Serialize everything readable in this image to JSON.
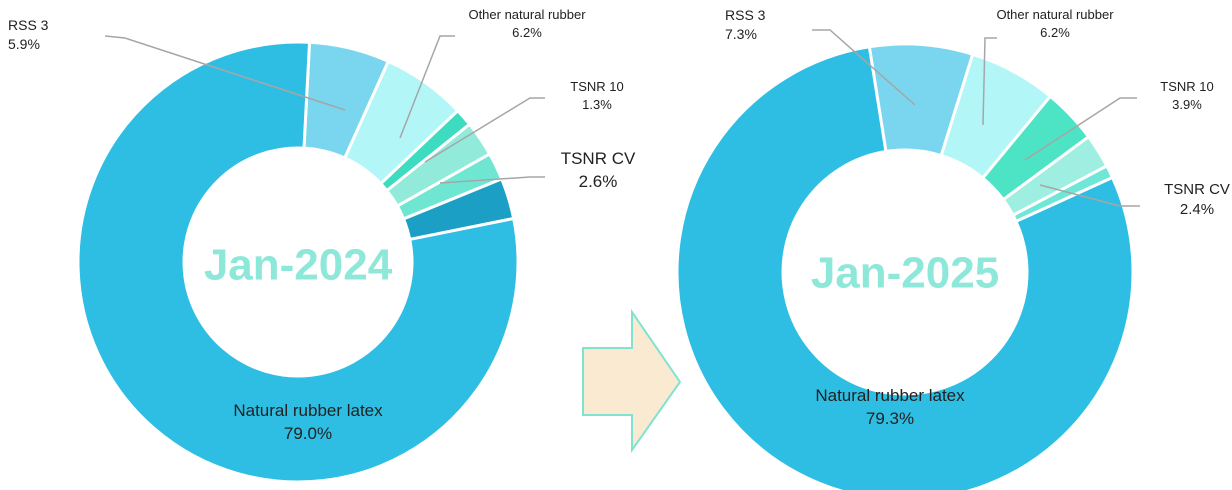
{
  "chart_data": [
    {
      "type": "pie",
      "title": "Jan-2024",
      "categories": [
        "RSS 3",
        "Other natural rubber",
        "TSNR 10",
        "TSNR CV",
        null,
        null,
        "Natural rubber latex"
      ],
      "values": [
        5.9,
        6.2,
        1.3,
        2.6,
        2.0,
        3.0,
        79.0
      ],
      "value_labels": [
        "5.9%",
        "6.2%",
        "1.3%",
        "2.6%",
        null,
        null,
        "79.0%"
      ],
      "colors": [
        "#7ad6ee",
        "#b3f6f7",
        "#3ddbc0",
        "#92eadb",
        "#6fe6d2",
        "#1b9fc5",
        "#2ebee3"
      ]
    },
    {
      "type": "pie",
      "title": "Jan-2025",
      "categories": [
        "RSS 3",
        "Other natural rubber",
        "TSNR 10",
        "TSNR CV",
        null,
        "Natural rubber latex"
      ],
      "values": [
        7.3,
        6.2,
        3.9,
        2.4,
        0.9,
        79.3
      ],
      "value_labels": [
        "7.3%",
        "6.2%",
        "3.9%",
        "2.4%",
        null,
        "79.3%"
      ],
      "colors": [
        "#7ad6ee",
        "#b3f6f7",
        "#4de3c5",
        "#9eeee1",
        "#6fe6d6",
        "#2ebee3"
      ]
    }
  ]
}
